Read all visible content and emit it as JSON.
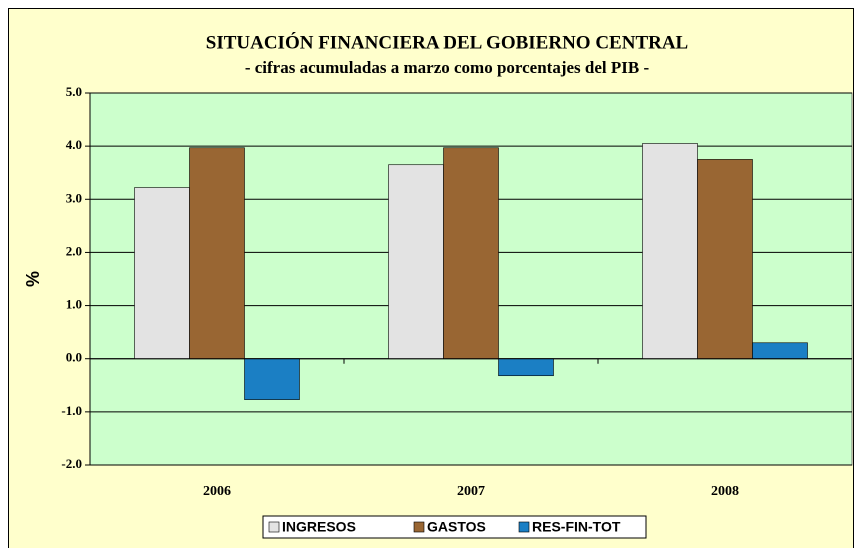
{
  "chart_data": {
    "type": "bar",
    "title": "SITUACIÓN FINANCIERA DEL GOBIERNO CENTRAL",
    "subtitle": "- cifras acumuladas a marzo como porcentajes del PIB -",
    "y_label": "%",
    "categories": [
      "2006",
      "2007",
      "2008"
    ],
    "series": [
      {
        "name": "INGRESOS",
        "color": "#e3e3e3",
        "values": [
          3.22,
          3.65,
          4.05
        ]
      },
      {
        "name": "GASTOS",
        "color": "#996633",
        "values": [
          3.97,
          3.97,
          3.75
        ]
      },
      {
        "name": "RES-FIN-TOT",
        "color": "#1b7fc4",
        "values": [
          -0.77,
          -0.32,
          0.3
        ]
      }
    ],
    "ylim": [
      -2,
      5
    ],
    "yticks": [
      {
        "value": -2,
        "label": "-2.0"
      },
      {
        "value": -1,
        "label": "-1.0"
      },
      {
        "value": 0,
        "label": "0.0"
      },
      {
        "value": 1,
        "label": "1.0"
      },
      {
        "value": 2,
        "label": "2.0"
      },
      {
        "value": 3,
        "label": "3.0"
      },
      {
        "value": 4,
        "label": "4.0"
      },
      {
        "value": 5,
        "label": "5.0"
      }
    ],
    "grid": true
  }
}
